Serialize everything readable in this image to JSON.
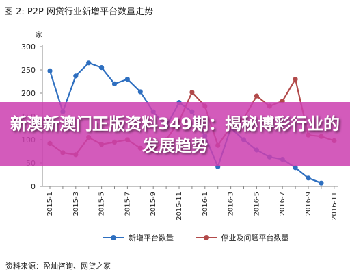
{
  "title": "图 2: P2P 网贷行业新增平台数量走势",
  "unit_label": "家",
  "source_note": "资料来源：盈灿咨询、网贷之家",
  "overlay": {
    "headline": "新澳新澳门正版资料349期：揭秘博彩行业的发展趋势"
  },
  "chart_data": {
    "type": "line",
    "categories": [
      "2015-1",
      "2015-2",
      "2015-3",
      "2015-4",
      "2015-5",
      "2015-6",
      "2015-7",
      "2015-8",
      "2015-9",
      "2015-10",
      "2015-11",
      "2015-12",
      "2016-1",
      "2016-2",
      "2016-3",
      "2016-4",
      "2016-5",
      "2016-6",
      "2016-7",
      "2016-8",
      "2016-9",
      "2016-10",
      "2016-11"
    ],
    "x_tick_labels": [
      "2015-1",
      "2015-3",
      "2015-5",
      "2015-7",
      "2015-9",
      "2015-11",
      "2016-1",
      "2016-3",
      "2016-5",
      "2016-7",
      "2016-9",
      "2016-11"
    ],
    "y_ticks": [
      0,
      50,
      100,
      150,
      200,
      250,
      300
    ],
    "ylim": [
      0,
      300
    ],
    "legend_position": "bottom",
    "grid": false,
    "series": [
      {
        "name": "新增平台数量",
        "color": "#2e6fc0",
        "values": [
          248,
          160,
          237,
          265,
          255,
          220,
          230,
          203,
          160,
          128,
          180,
          160,
          108,
          42,
          125,
          100,
          78,
          63,
          58,
          40,
          18,
          7,
          null
        ]
      },
      {
        "name": "停业及问题平台数量",
        "color": "#b24a4a",
        "values": [
          92,
          72,
          68,
          105,
          90,
          95,
          100,
          82,
          77,
          100,
          140,
          202,
          172,
          88,
          128,
          145,
          194,
          172,
          183,
          230,
          110,
          107,
          98
        ]
      }
    ]
  }
}
